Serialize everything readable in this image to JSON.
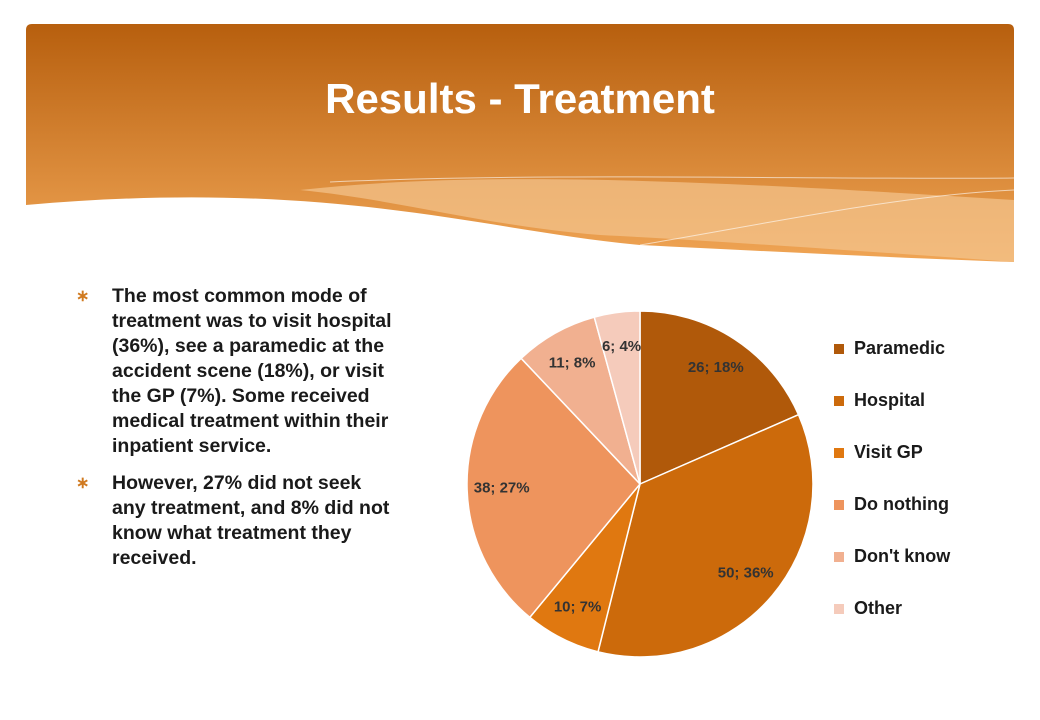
{
  "header": {
    "title": "Results - Treatment"
  },
  "bullets": [
    "The most common mode of treatment was to visit hospital (36%), see a paramedic at the accident scene (18%), or visit the GP (7%). Some received medical treatment within their inpatient service.",
    "However, 27% did not seek any treatment, and 8% did not know what treatment they received."
  ],
  "chart_data": {
    "type": "pie",
    "categories": [
      "Paramedic",
      "Hospital",
      "Visit GP",
      "Do nothing",
      "Don't know",
      "Other"
    ],
    "values": [
      26,
      50,
      10,
      38,
      11,
      6
    ],
    "value_labels": [
      "26; 18%",
      "50; 36%",
      "10; 7%",
      "38; 27%",
      "11; 8%",
      "6; 4%"
    ],
    "colors": [
      "#b0590a",
      "#cc6a0b",
      "#e07810",
      "#ee945d",
      "#f1b090",
      "#f5cbbb"
    ],
    "legend": "right"
  }
}
